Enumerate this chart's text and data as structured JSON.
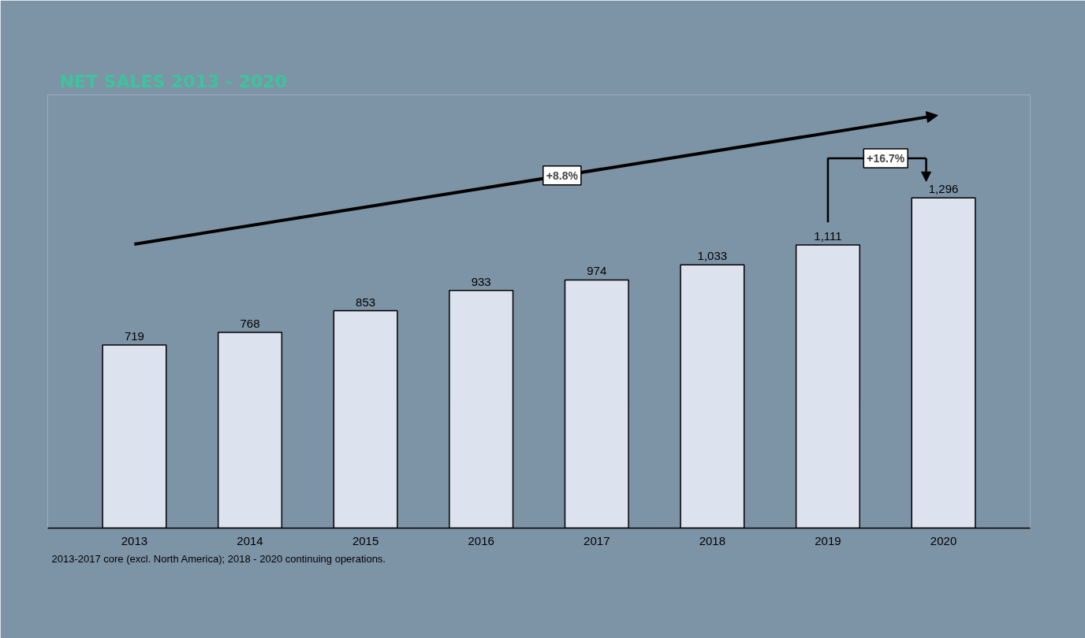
{
  "chart_data": {
    "type": "bar",
    "title": "NET SALES 2013 - 2020",
    "categories": [
      "2013",
      "2014",
      "2015",
      "2016",
      "2017",
      "2018",
      "2019",
      "2020"
    ],
    "values": [
      719,
      768,
      853,
      933,
      974,
      1033,
      1111,
      1296
    ],
    "color": "#dde3ee",
    "value_labels": [
      "719",
      "768",
      "853",
      "933",
      "974",
      "1,033",
      "1,111",
      "1,296"
    ],
    "ylim": [
      0,
      1700
    ],
    "grid": false,
    "annotations": [
      "+8.8%",
      "+16.7%",
      "2013-2017 core (excl. North America); 2018 - 2020 continuing operations."
    ]
  }
}
